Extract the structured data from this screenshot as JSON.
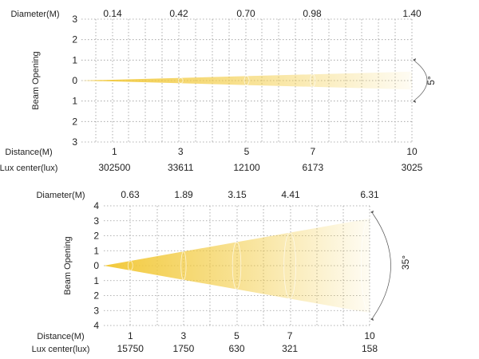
{
  "chart_data": [
    {
      "type": "beam_spread",
      "beam_angle_label": "5°",
      "beam_angle_deg": 5,
      "row_labels": {
        "diameter": "Diameter(M)",
        "distance": "Distance(M)",
        "lux": "Lux center(lux)"
      },
      "ylabel": "Beam Opening",
      "y_ticks": [
        "3",
        "2",
        "1",
        "0",
        "1",
        "2",
        "3"
      ],
      "ylim": [
        -3,
        3
      ],
      "xlim": [
        0,
        10
      ],
      "distance_m": [
        1,
        3,
        5,
        7,
        10
      ],
      "diameter_m": [
        "0.14",
        "0.42",
        "0.70",
        "0.98",
        "1.40"
      ],
      "lux_center": [
        "302500",
        "33611",
        "12100",
        "6173",
        "3025"
      ],
      "grid": true,
      "beam_color": "#f2c93a"
    },
    {
      "type": "beam_spread",
      "beam_angle_label": "35°",
      "beam_angle_deg": 35,
      "row_labels": {
        "diameter": "Diameter(M)",
        "distance": "Distance(M)",
        "lux": "Lux center(lux)"
      },
      "ylabel": "Beam Opening",
      "y_ticks": [
        "4",
        "3",
        "2",
        "1",
        "0",
        "1",
        "2",
        "3",
        "4"
      ],
      "ylim": [
        -4,
        4
      ],
      "xlim": [
        0,
        10
      ],
      "distance_m": [
        1,
        3,
        5,
        7,
        10
      ],
      "diameter_m": [
        "0.63",
        "1.89",
        "3.15",
        "4.41",
        "6.31"
      ],
      "lux_center": [
        "15750",
        "1750",
        "630",
        "321",
        "158"
      ],
      "grid": true,
      "beam_color": "#f2c93a"
    }
  ]
}
